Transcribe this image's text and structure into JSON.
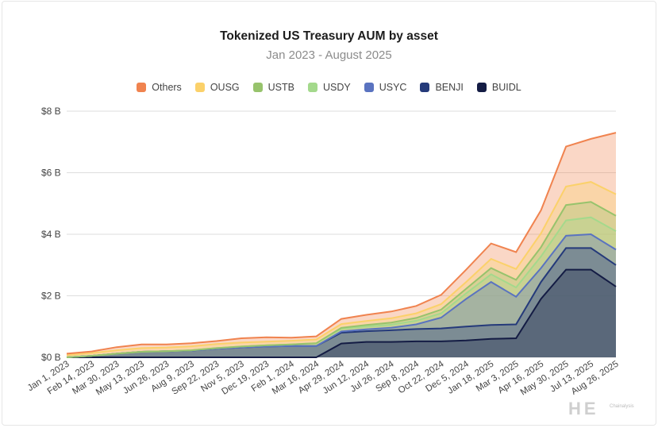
{
  "title": "Tokenized US Treasury AUM by asset",
  "subtitle": "Jan 2023 - August 2025",
  "legend": [
    {
      "name": "Others",
      "color": "#f0834f"
    },
    {
      "name": "OUSG",
      "color": "#fbd16a"
    },
    {
      "name": "USTB",
      "color": "#97c36c"
    },
    {
      "name": "USDY",
      "color": "#a4d98c"
    },
    {
      "name": "USYC",
      "color": "#5a73c0"
    },
    {
      "name": "BENJI",
      "color": "#253a7a"
    },
    {
      "name": "BUIDL",
      "color": "#141c44"
    }
  ],
  "watermark": {
    "text": "HE",
    "note": "Chainalysis"
  },
  "chart_data": {
    "type": "area",
    "title": "Tokenized US Treasury AUM by asset",
    "subtitle": "Jan 2023 - August 2025",
    "ylim": [
      0,
      8
    ],
    "yticks": [
      "$0 B",
      "$2 B",
      "$4 B",
      "$6 B",
      "$8 B"
    ],
    "xticks": [
      "Jan 1, 2023",
      "Feb 14, 2023",
      "Mar 30, 2023",
      "May 13, 2023",
      "Jun 26, 2023",
      "Aug 9, 2023",
      "Sep 22, 2023",
      "Nov 5, 2023",
      "Dec 19, 2023",
      "Feb 1, 2024",
      "Mar 16, 2024",
      "Apr 29, 2024",
      "Jun 12, 2024",
      "Jul 26, 2024",
      "Sep 8, 2024",
      "Oct 22, 2024",
      "Dec 5, 2024",
      "Jan 18, 2025",
      "Mar 3, 2025",
      "Apr 16, 2025",
      "May 30, 2025",
      "Jul 13, 2025",
      "Aug 26, 2025"
    ],
    "grid": true,
    "legend_position": "top",
    "stacked": true,
    "x": [
      "2023-01-01",
      "2023-02-14",
      "2023-03-30",
      "2023-05-13",
      "2023-06-26",
      "2023-08-09",
      "2023-09-22",
      "2023-11-05",
      "2023-12-19",
      "2024-02-01",
      "2024-03-16",
      "2024-04-29",
      "2024-06-12",
      "2024-07-26",
      "2024-09-08",
      "2024-10-22",
      "2024-12-05",
      "2025-01-18",
      "2025-03-03",
      "2025-04-16",
      "2025-05-30",
      "2025-07-13",
      "2025-08-26"
    ],
    "series_order": "bottom-to-top",
    "series": [
      {
        "name": "BUIDL",
        "color": "#141c44",
        "values": [
          0,
          0,
          0,
          0,
          0,
          0,
          0,
          0,
          0,
          0,
          0,
          0.45,
          0.5,
          0.5,
          0.52,
          0.52,
          0.55,
          0.6,
          0.62,
          1.9,
          2.85,
          2.85,
          2.3
        ]
      },
      {
        "name": "BENJI",
        "color": "#253a7a",
        "values": [
          0.0,
          0.05,
          0.12,
          0.18,
          0.2,
          0.22,
          0.28,
          0.32,
          0.35,
          0.37,
          0.37,
          0.35,
          0.35,
          0.38,
          0.4,
          0.42,
          0.45,
          0.45,
          0.45,
          0.55,
          0.7,
          0.7,
          0.7
        ]
      },
      {
        "name": "USYC",
        "color": "#5a73c0",
        "values": [
          0,
          0,
          0,
          0,
          0,
          0,
          0,
          0,
          0,
          0,
          0,
          0.04,
          0.06,
          0.08,
          0.15,
          0.35,
          0.9,
          1.4,
          0.9,
          0.45,
          0.4,
          0.45,
          0.5
        ]
      },
      {
        "name": "USDY",
        "color": "#a4d98c",
        "values": [
          0,
          0,
          0,
          0,
          0,
          0.01,
          0.02,
          0.03,
          0.04,
          0.05,
          0.09,
          0.09,
          0.09,
          0.1,
          0.12,
          0.14,
          0.18,
          0.25,
          0.3,
          0.38,
          0.5,
          0.55,
          0.6
        ]
      },
      {
        "name": "USTB",
        "color": "#97c36c",
        "values": [
          0,
          0,
          0,
          0,
          0,
          0,
          0,
          0,
          0,
          0,
          0,
          0.03,
          0.05,
          0.07,
          0.09,
          0.12,
          0.15,
          0.2,
          0.25,
          0.3,
          0.5,
          0.5,
          0.5
        ]
      },
      {
        "name": "OUSG",
        "color": "#fbd16a",
        "values": [
          0.07,
          0.09,
          0.11,
          0.12,
          0.12,
          0.13,
          0.13,
          0.13,
          0.12,
          0.12,
          0.12,
          0.12,
          0.13,
          0.14,
          0.15,
          0.18,
          0.22,
          0.3,
          0.35,
          0.45,
          0.6,
          0.65,
          0.7
        ]
      },
      {
        "name": "Others",
        "color": "#f0834f",
        "values": [
          0.05,
          0.05,
          0.1,
          0.12,
          0.1,
          0.1,
          0.1,
          0.14,
          0.14,
          0.1,
          0.1,
          0.17,
          0.2,
          0.22,
          0.24,
          0.3,
          0.4,
          0.5,
          0.55,
          0.75,
          1.3,
          1.4,
          2.0
        ]
      }
    ]
  }
}
